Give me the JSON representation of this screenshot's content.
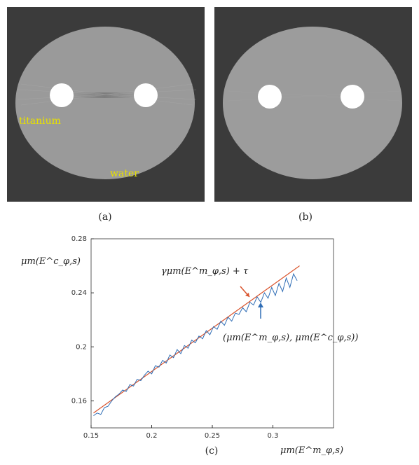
{
  "panel_a": {
    "caption": "(a)",
    "labels": {
      "titanium": "titanium",
      "water": "water"
    }
  },
  "panel_b": {
    "caption": "(b)"
  },
  "panel_c": {
    "caption": "(c)"
  },
  "colors": {
    "fit_line": "#d9532c",
    "data_line": "#2f6db5",
    "background": "#3b3b3b",
    "phantom": "#9a9a9a",
    "insert": "#ffffff",
    "label": "#e8e000"
  },
  "chart_data": {
    "type": "line",
    "ylabel": "μm(E^c_φ,s)",
    "xlabel": "μm(E^m_φ,s)",
    "xlim": [
      0.15,
      0.35
    ],
    "ylim": [
      0.14,
      0.28
    ],
    "xticks": [
      "0.15",
      "0.2",
      "0.25",
      "0.3"
    ],
    "yticks": [
      "0.16",
      "0.2",
      "0.24",
      "0.28"
    ],
    "annotations": {
      "fit": "γμm(E^m_φ,s) + τ",
      "data": "(μm(E^m_φ,s), μm(E^c_φ,s))"
    },
    "series": [
      {
        "kind": "fit",
        "x": [
          0.152,
          0.322
        ],
        "y": [
          0.151,
          0.26
        ]
      },
      {
        "kind": "data",
        "x": [
          0.152,
          0.155,
          0.158,
          0.161,
          0.164,
          0.167,
          0.17,
          0.173,
          0.176,
          0.179,
          0.182,
          0.185,
          0.188,
          0.191,
          0.194,
          0.197,
          0.2,
          0.203,
          0.206,
          0.209,
          0.212,
          0.215,
          0.218,
          0.221,
          0.224,
          0.227,
          0.23,
          0.233,
          0.236,
          0.239,
          0.242,
          0.245,
          0.248,
          0.251,
          0.254,
          0.257,
          0.26,
          0.263,
          0.266,
          0.269,
          0.272,
          0.275,
          0.278,
          0.281,
          0.284,
          0.287,
          0.29,
          0.293,
          0.296,
          0.299,
          0.302,
          0.305,
          0.308,
          0.311,
          0.314,
          0.317,
          0.32
        ],
        "y": [
          0.149,
          0.151,
          0.15,
          0.155,
          0.156,
          0.16,
          0.163,
          0.165,
          0.168,
          0.167,
          0.172,
          0.171,
          0.176,
          0.175,
          0.179,
          0.182,
          0.18,
          0.186,
          0.185,
          0.19,
          0.188,
          0.194,
          0.192,
          0.198,
          0.195,
          0.201,
          0.199,
          0.205,
          0.203,
          0.208,
          0.206,
          0.212,
          0.209,
          0.215,
          0.213,
          0.219,
          0.216,
          0.222,
          0.219,
          0.225,
          0.224,
          0.229,
          0.226,
          0.233,
          0.231,
          0.237,
          0.233,
          0.24,
          0.236,
          0.244,
          0.238,
          0.247,
          0.241,
          0.251,
          0.244,
          0.254,
          0.249
        ]
      }
    ]
  }
}
